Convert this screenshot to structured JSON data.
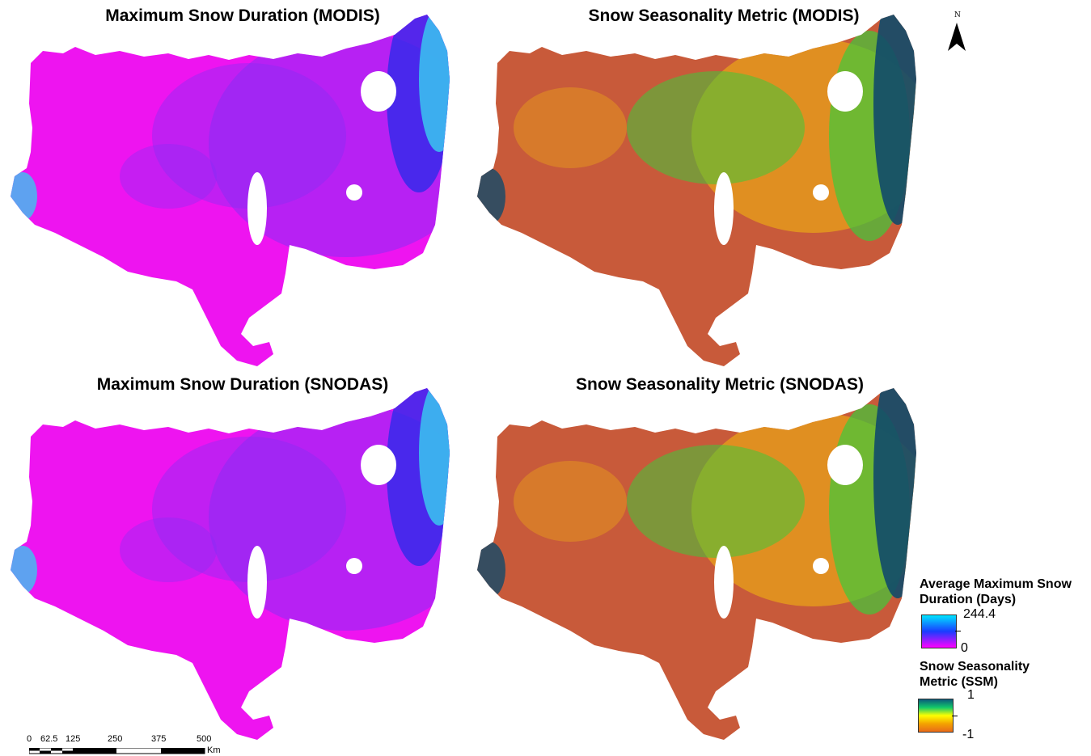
{
  "panels": [
    {
      "title": "Maximum Snow Duration (MODIS)",
      "palette": "duration"
    },
    {
      "title": "Snow Seasonality Metric (MODIS)",
      "palette": "ssm"
    },
    {
      "title": "Maximum Snow Duration (SNODAS)",
      "palette": "duration"
    },
    {
      "title": "Snow Seasonality Metric (SNODAS)",
      "palette": "ssm"
    }
  ],
  "north_arrow": {
    "letter": "N"
  },
  "legend": {
    "duration": {
      "title_line1": "Average Maximum Snow",
      "title_line2": "Duration (Days)",
      "max_label": "244.4",
      "min_label": "0",
      "colors": [
        "#00e5ff",
        "#1a3cff",
        "#ff00ff"
      ]
    },
    "ssm": {
      "title_line1": "Snow Seasonality",
      "title_line2": "Metric (SSM)",
      "max_label": "1",
      "min_label": "-1",
      "colors": [
        "#0b5a7a",
        "#11c96a",
        "#ffff00",
        "#f4a300",
        "#e86a1a"
      ]
    }
  },
  "scale_bar": {
    "ticks": [
      "0",
      "62.5",
      "125",
      "250",
      "375",
      "500"
    ],
    "unit": "Km"
  },
  "colors": {
    "duration_low": "#ee14f0",
    "duration_mid": "#8a2cf5",
    "duration_high": "#2d2bea",
    "duration_snow": "#39c6f0",
    "ssm_low": "#c85a3a",
    "ssm_mid": "#e8a21a",
    "ssm_green": "#3fc93a",
    "ssm_high": "#114a6a"
  }
}
